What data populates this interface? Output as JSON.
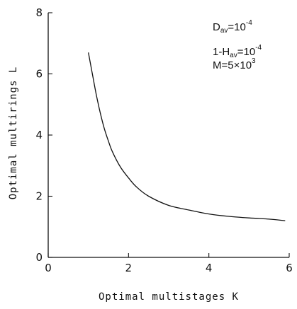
{
  "chart_data": {
    "type": "line",
    "xlabel": "Optimal multistages K",
    "ylabel": "Optimal multirings L",
    "xlim": [
      0,
      6
    ],
    "ylim": [
      0,
      8
    ],
    "xticks": [
      "0",
      "2",
      "4",
      "6"
    ],
    "yticks": [
      "0",
      "2",
      "4",
      "6",
      "8"
    ],
    "grid": false,
    "series": [
      {
        "x": [
          1.0,
          1.1,
          1.2,
          1.3,
          1.4,
          1.5,
          1.6,
          1.8,
          2.0,
          2.2,
          2.5,
          3.0,
          3.5,
          4.0,
          4.5,
          5.0,
          5.5,
          5.9
        ],
        "y": [
          6.7,
          6.0,
          5.3,
          4.7,
          4.2,
          3.8,
          3.45,
          2.95,
          2.6,
          2.3,
          2.0,
          1.7,
          1.55,
          1.42,
          1.34,
          1.29,
          1.25,
          1.2
        ]
      }
    ],
    "annotations": [
      {
        "main": "D",
        "sub": "av",
        "rest": "=10",
        "sup": "-4"
      },
      {
        "main": "1-H",
        "sub": "av",
        "rest": "=10",
        "sup": "-4"
      },
      {
        "main": "M=5×10",
        "sub": "",
        "rest": "",
        "sup": "3"
      }
    ]
  }
}
